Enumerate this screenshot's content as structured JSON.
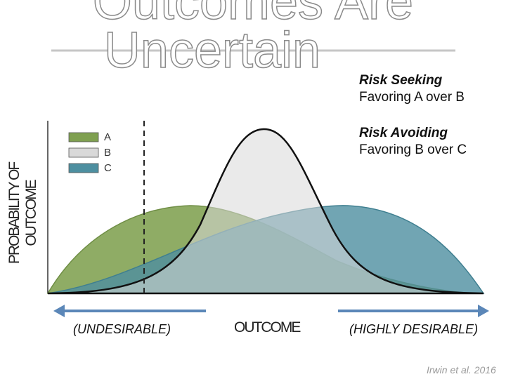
{
  "title": {
    "line1": "Outcomes Are",
    "line2": "Uncertain"
  },
  "notes": {
    "risk_seeking": {
      "heading": "Risk Seeking",
      "text": "Favoring A over B"
    },
    "risk_avoiding": {
      "heading": "Risk Avoiding",
      "text": "Favoring B over C"
    }
  },
  "captions": {
    "left": "(UNDESIRABLE)",
    "right": "(HIGHLY DESIRABLE)"
  },
  "citation": "Irwin et al. 2016",
  "colors": {
    "A": "#7fa050",
    "B": "#d9d9d9",
    "C": "#4d8fa0",
    "arrow": "#5b87b8"
  },
  "chart_data": {
    "type": "area",
    "xlabel": "OUTCOME",
    "ylabel": "PROBABILITY OF OUTCOME",
    "legend": [
      "A",
      "B",
      "C"
    ],
    "legend_position": "top-left",
    "dashed_reference_line": true,
    "series": [
      {
        "name": "A",
        "shape": "broad curve peaking at left of center"
      },
      {
        "name": "B",
        "shape": "narrow tall peak at center"
      },
      {
        "name": "C",
        "shape": "broad curve peaking at right of center"
      }
    ]
  }
}
